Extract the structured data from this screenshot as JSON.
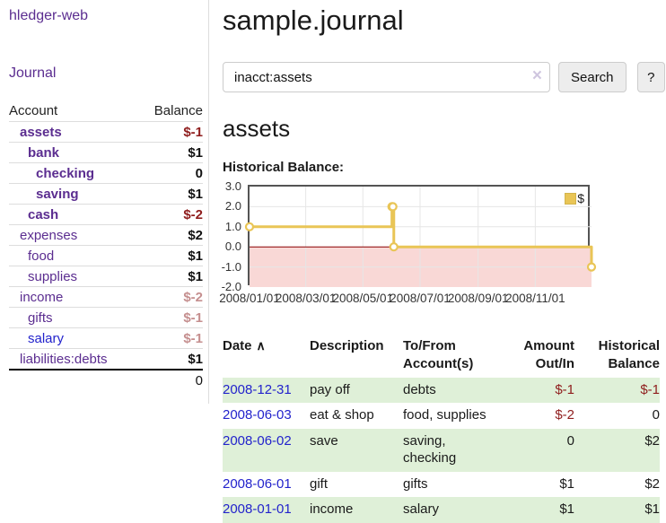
{
  "sidebar": {
    "brand": "hledger-web",
    "nav": {
      "journal": "Journal"
    },
    "accounts_table": {
      "headers": [
        "Account",
        "Balance"
      ],
      "rows": [
        {
          "account": "assets",
          "indent": 1,
          "bold": true,
          "balance": "$-1",
          "balance_style": "neg-strong"
        },
        {
          "account": "bank",
          "indent": 2,
          "bold": true,
          "balance": "$1",
          "balance_style": "pos"
        },
        {
          "account": "checking",
          "indent": 3,
          "bold": true,
          "balance": "0",
          "balance_style": "pos"
        },
        {
          "account": "saving",
          "indent": 3,
          "bold": true,
          "balance": "$1",
          "balance_style": "pos"
        },
        {
          "account": "cash",
          "indent": 2,
          "bold": true,
          "balance": "$-2",
          "balance_style": "neg-strong"
        },
        {
          "account": "expenses",
          "indent": 1,
          "bold": false,
          "balance": "$2",
          "balance_style": "pos"
        },
        {
          "account": "food",
          "indent": 2,
          "bold": false,
          "balance": "$1",
          "balance_style": "pos"
        },
        {
          "account": "supplies",
          "indent": 2,
          "bold": false,
          "balance": "$1",
          "balance_style": "pos"
        },
        {
          "account": "income",
          "indent": 1,
          "bold": false,
          "balance": "$-2",
          "balance_style": "neg-soft"
        },
        {
          "account": "gifts",
          "indent": 2,
          "bold": false,
          "balance": "$-1",
          "balance_style": "neg-soft"
        },
        {
          "account": "salary",
          "indent": 2,
          "bold": false,
          "balance": "$-1",
          "balance_style": "neg-soft",
          "link_color": "blue"
        },
        {
          "account": "liabilities:debts",
          "indent": 1,
          "bold": false,
          "balance": "$1",
          "balance_style": "pos"
        }
      ],
      "total": "0"
    }
  },
  "header": {
    "title": "sample.journal"
  },
  "search": {
    "value": "inacct:assets",
    "clear_icon": "×",
    "button": "Search",
    "help_button": "?"
  },
  "account_page": {
    "heading": "assets",
    "chart_label": "Historical Balance:"
  },
  "chart_data": {
    "type": "line",
    "mode": "step",
    "title": "Historical Balance",
    "series": [
      {
        "name": "$",
        "color": "#e9c556",
        "points": [
          {
            "date": "2008-01-01",
            "day": 0,
            "value": 1
          },
          {
            "date": "2008-06-01",
            "day": 152,
            "value": 2
          },
          {
            "date": "2008-06-02",
            "day": 153,
            "value": 2
          },
          {
            "date": "2008-06-03",
            "day": 154,
            "value": 0
          },
          {
            "date": "2008-12-31",
            "day": 365,
            "value": -1
          }
        ]
      }
    ],
    "x_ticks": [
      {
        "day": 0,
        "label": "2008/01/01"
      },
      {
        "day": 60,
        "label": "2008/03/01"
      },
      {
        "day": 121,
        "label": "2008/05/01"
      },
      {
        "day": 182,
        "label": "2008/07/01"
      },
      {
        "day": 244,
        "label": "2008/09/01"
      },
      {
        "day": 305,
        "label": "2008/11/01"
      }
    ],
    "y_ticks": [
      3.0,
      2.0,
      1.0,
      0.0,
      -1.0,
      -2.0
    ],
    "xlim": [
      0,
      365
    ],
    "ylim": [
      -2,
      3
    ],
    "grid": true,
    "negative_region_color": "#f9d8d6",
    "zero_line_color": "#8b0000",
    "legend": {
      "label": "$",
      "position": "top-right"
    }
  },
  "register_table": {
    "sort_icon": "∧",
    "headers": [
      {
        "label": "Date",
        "sort": "asc"
      },
      {
        "label": "Description"
      },
      {
        "label": "To/From Account(s)"
      },
      {
        "label": "Amount Out/In"
      },
      {
        "label": "Historical Balance"
      }
    ],
    "rows": [
      {
        "date": "2008-12-31",
        "description": "pay off",
        "accounts": "debts",
        "amount": "$-1",
        "amount_neg": true,
        "balance": "$-1",
        "balance_neg": true
      },
      {
        "date": "2008-06-03",
        "description": "eat & shop",
        "accounts": "food, supplies",
        "amount": "$-2",
        "amount_neg": true,
        "balance": "0",
        "balance_neg": false
      },
      {
        "date": "2008-06-02",
        "description": "save",
        "accounts": "saving, checking",
        "amount": "0",
        "amount_neg": false,
        "balance": "$2",
        "balance_neg": false
      },
      {
        "date": "2008-06-01",
        "description": "gift",
        "accounts": "gifts",
        "amount": "$1",
        "amount_neg": false,
        "balance": "$2",
        "balance_neg": false
      },
      {
        "date": "2008-01-01",
        "description": "income",
        "accounts": "salary",
        "amount": "$1",
        "amount_neg": false,
        "balance": "$1",
        "balance_neg": false
      }
    ]
  },
  "colors": {
    "link_purple": "#5b2d90",
    "link_blue": "#2323cc",
    "negative_strong": "#8f1d1d",
    "negative_soft": "#c58f8f",
    "row_stripe_green": "#dff0d8",
    "chart_line_gold": "#e9c556",
    "chart_negative_pink": "#f9d8d6",
    "chart_zero_line": "#8b0000",
    "chart_border": "#545454"
  }
}
